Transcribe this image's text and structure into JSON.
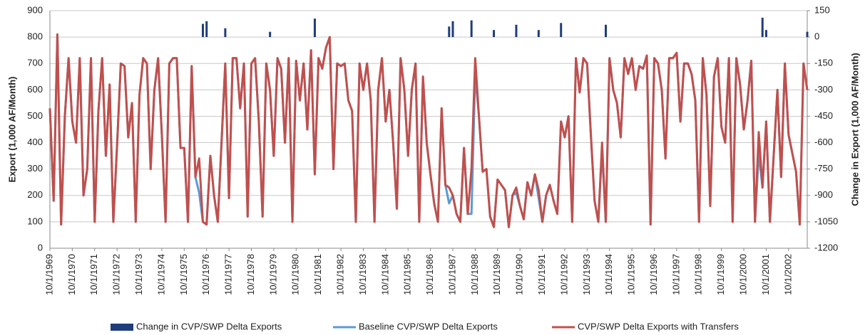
{
  "chart_data": {
    "type": "line",
    "y_label": "Export (1,000 AF/Month)",
    "y2_label": "Change in Export (1,000 AF/Month)",
    "ylim": [
      0,
      900
    ],
    "yticks": [
      0,
      100,
      200,
      300,
      400,
      500,
      600,
      700,
      800,
      900
    ],
    "y2lim": [
      -1200,
      150
    ],
    "y2ticks": [
      -1200,
      -1050,
      -900,
      -750,
      -600,
      -450,
      -300,
      -150,
      0,
      150
    ],
    "grid": true,
    "categories": [
      "10/1/1969",
      null,
      null,
      null,
      null,
      null,
      "10/1/1970",
      null,
      null,
      null,
      null,
      null,
      "10/1/1971",
      null,
      null,
      null,
      null,
      null,
      "10/1/1972",
      null,
      null,
      null,
      null,
      null,
      "10/1/1973",
      null,
      null,
      null,
      null,
      null,
      "10/1/1974",
      null,
      null,
      null,
      null,
      null,
      "10/1/1975",
      null,
      null,
      null,
      null,
      null,
      "10/1/1976",
      null,
      null,
      null,
      null,
      null,
      "10/1/1977",
      null,
      null,
      null,
      null,
      null,
      "10/1/1978",
      null,
      null,
      null,
      null,
      null,
      "10/1/1979",
      null,
      null,
      null,
      null,
      null,
      "10/1/1980",
      null,
      null,
      null,
      null,
      null,
      "10/1/1981",
      null,
      null,
      null,
      null,
      null,
      "10/1/1982",
      null,
      null,
      null,
      null,
      null,
      "10/1/1983",
      null,
      null,
      null,
      null,
      null,
      "10/1/1984",
      null,
      null,
      null,
      null,
      null,
      "10/1/1985",
      null,
      null,
      null,
      null,
      null,
      "10/1/1986",
      null,
      null,
      null,
      null,
      null,
      "10/1/1987",
      null,
      null,
      null,
      null,
      null,
      "10/1/1988",
      null,
      null,
      null,
      null,
      null,
      "10/1/1989",
      null,
      null,
      null,
      null,
      null,
      "10/1/1990",
      null,
      null,
      null,
      null,
      null,
      "10/1/1991",
      null,
      null,
      null,
      null,
      null,
      "10/1/1992",
      null,
      null,
      null,
      null,
      null,
      "10/1/1993",
      null,
      null,
      null,
      null,
      null,
      "10/1/1994",
      null,
      null,
      null,
      null,
      null,
      "10/1/1995",
      null,
      null,
      null,
      null,
      null,
      "10/1/1996",
      null,
      null,
      null,
      null,
      null,
      "10/1/1997",
      null,
      null,
      null,
      null,
      null,
      "10/1/1998",
      null,
      null,
      null,
      null,
      null,
      "10/1/1999",
      null,
      null,
      null,
      null,
      null,
      "10/1/2000",
      null,
      null,
      null,
      null,
      null,
      "10/1/2001",
      null,
      null,
      null,
      null,
      null,
      "10/1/2002",
      null,
      null,
      null,
      null,
      null
    ],
    "series": [
      {
        "name": "Change in CVP/SWP Delta Exports",
        "type": "bar",
        "axis": "y2",
        "color": "#1f3d7a",
        "values": [
          0,
          0,
          0,
          0,
          0,
          0,
          0,
          0,
          0,
          0,
          0,
          0,
          0,
          0,
          0,
          0,
          0,
          0,
          0,
          0,
          0,
          0,
          0,
          0,
          0,
          0,
          0,
          0,
          0,
          0,
          0,
          0,
          0,
          0,
          0,
          0,
          0,
          0,
          0,
          0,
          0,
          75,
          90,
          0,
          0,
          0,
          0,
          50,
          0,
          0,
          0,
          0,
          0,
          0,
          0,
          0,
          0,
          0,
          0,
          30,
          0,
          0,
          0,
          0,
          0,
          0,
          0,
          0,
          0,
          0,
          0,
          105,
          0,
          0,
          0,
          0,
          0,
          0,
          0,
          0,
          0,
          0,
          0,
          0,
          0,
          0,
          0,
          0,
          0,
          0,
          0,
          0,
          0,
          0,
          0,
          0,
          0,
          0,
          0,
          0,
          0,
          0,
          0,
          0,
          0,
          0,
          0,
          60,
          90,
          0,
          0,
          0,
          0,
          95,
          0,
          0,
          0,
          0,
          0,
          40,
          0,
          0,
          0,
          0,
          0,
          70,
          0,
          0,
          0,
          0,
          0,
          40,
          0,
          0,
          0,
          0,
          0,
          80,
          0,
          0,
          0,
          0,
          0,
          0,
          0,
          0,
          0,
          0,
          0,
          70,
          0,
          0,
          0,
          0,
          0,
          0,
          0,
          0,
          0,
          0,
          0,
          0,
          0,
          0,
          0,
          0,
          0,
          0,
          0,
          0,
          0,
          0,
          0,
          0,
          0,
          0,
          0,
          0,
          0,
          0,
          0,
          0,
          0,
          0,
          0,
          0,
          0,
          0,
          0,
          0,
          0,
          110,
          40,
          0,
          0,
          0,
          0,
          0,
          0,
          0,
          0,
          0,
          0,
          30
        ]
      },
      {
        "name": "Baseline CVP/SWP Delta Exports",
        "type": "line",
        "color": "#5b9bd5",
        "values": [
          530,
          180,
          810,
          90,
          500,
          720,
          480,
          400,
          720,
          200,
          300,
          720,
          100,
          520,
          720,
          350,
          620,
          100,
          390,
          700,
          690,
          420,
          550,
          100,
          580,
          720,
          700,
          300,
          600,
          720,
          430,
          100,
          700,
          720,
          720,
          380,
          380,
          100,
          690,
          270,
          210,
          100,
          90,
          350,
          200,
          100,
          400,
          700,
          190,
          720,
          720,
          530,
          700,
          120,
          700,
          720,
          480,
          120,
          700,
          600,
          350,
          720,
          680,
          400,
          720,
          100,
          710,
          560,
          700,
          450,
          750,
          280,
          720,
          680,
          760,
          800,
          300,
          700,
          690,
          700,
          560,
          520,
          100,
          700,
          600,
          700,
          560,
          100,
          600,
          720,
          480,
          600,
          400,
          150,
          720,
          600,
          350,
          600,
          700,
          100,
          650,
          400,
          280,
          170,
          100,
          530,
          240,
          170,
          200,
          130,
          100,
          380,
          130,
          130,
          660,
          500,
          290,
          300,
          120,
          80,
          260,
          240,
          220,
          80,
          200,
          210,
          160,
          110,
          250,
          200,
          280,
          190,
          100,
          200,
          240,
          180,
          130,
          480,
          420,
          500,
          100,
          720,
          590,
          720,
          700,
          430,
          180,
          100,
          370,
          100,
          720,
          600,
          550,
          420,
          720,
          660,
          720,
          600,
          690,
          680,
          730,
          90,
          720,
          700,
          600,
          340,
          720,
          720,
          740,
          480,
          700,
          700,
          660,
          560,
          100,
          720,
          580,
          160,
          650,
          720,
          460,
          400,
          720,
          100,
          720,
          620,
          450,
          560,
          710,
          100,
          360,
          230,
          480,
          100,
          350,
          600,
          270,
          700,
          430,
          360,
          290,
          90,
          700,
          600
        ]
      },
      {
        "name": "CVP/SWP Delta Exports with Transfers",
        "type": "line",
        "color": "#c0504d",
        "values": [
          530,
          180,
          810,
          90,
          500,
          720,
          480,
          400,
          720,
          200,
          300,
          720,
          100,
          520,
          720,
          350,
          620,
          100,
          390,
          700,
          690,
          420,
          550,
          100,
          580,
          720,
          700,
          300,
          600,
          720,
          430,
          100,
          700,
          720,
          720,
          380,
          380,
          100,
          690,
          270,
          340,
          100,
          90,
          350,
          200,
          100,
          400,
          700,
          190,
          720,
          720,
          530,
          700,
          120,
          700,
          720,
          480,
          120,
          700,
          600,
          350,
          720,
          680,
          400,
          720,
          100,
          710,
          560,
          700,
          450,
          750,
          280,
          720,
          680,
          760,
          800,
          300,
          700,
          690,
          700,
          560,
          520,
          100,
          700,
          600,
          700,
          560,
          100,
          600,
          720,
          480,
          600,
          400,
          150,
          720,
          600,
          350,
          600,
          700,
          100,
          650,
          400,
          280,
          170,
          100,
          530,
          240,
          230,
          200,
          130,
          100,
          380,
          130,
          300,
          720,
          500,
          290,
          300,
          120,
          80,
          260,
          240,
          220,
          80,
          200,
          230,
          160,
          110,
          250,
          200,
          280,
          220,
          100,
          200,
          240,
          180,
          130,
          480,
          420,
          500,
          100,
          720,
          590,
          720,
          700,
          430,
          180,
          100,
          400,
          100,
          720,
          600,
          550,
          420,
          720,
          660,
          720,
          600,
          690,
          680,
          730,
          90,
          720,
          700,
          600,
          340,
          720,
          720,
          740,
          480,
          700,
          700,
          660,
          560,
          100,
          720,
          580,
          160,
          650,
          720,
          460,
          400,
          720,
          100,
          720,
          620,
          450,
          560,
          710,
          100,
          440,
          230,
          480,
          100,
          350,
          600,
          270,
          700,
          430,
          360,
          290,
          90,
          700,
          600
        ]
      }
    ]
  }
}
